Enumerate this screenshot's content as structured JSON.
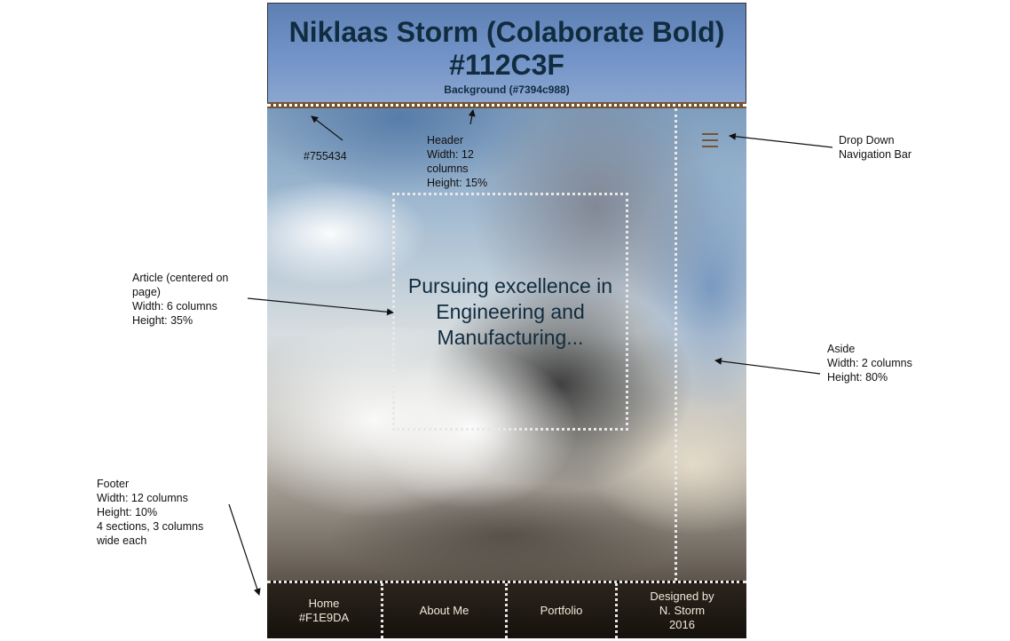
{
  "header": {
    "title_line1": "Niklaas Storm (Colaborate Bold)",
    "title_line2": "#112C3F",
    "subtitle": "Background (#7394c988)"
  },
  "article": {
    "text": "Pursuing excellence in Engineering and Manufacturing..."
  },
  "footer": {
    "sections": [
      {
        "line1": "Home",
        "line2": "#F1E9DA"
      },
      {
        "line1": "About Me"
      },
      {
        "line1": "Portfolio"
      },
      {
        "line1": "Designed by",
        "line2": "N. Storm",
        "line3": "2016"
      }
    ]
  },
  "annotations": {
    "band_color": "#755434",
    "header": "Header\nWidth: 12\ncolumns\nHeight: 15%",
    "dropdown": "Drop Down\nNavigation Bar",
    "article": "Article (centered on\npage)\nWidth: 6 columns\nHeight: 35%",
    "aside": "Aside\nWidth: 2 columns\nHeight: 80%",
    "footer": "Footer\nWidth: 12 columns\nHeight: 10%\n4 sections, 3 columns\nwide each"
  },
  "colors": {
    "title": "#112C3F",
    "header_bg": "#7394c9",
    "band": "#755434",
    "footer_text": "#F1E9DA"
  },
  "icons": {
    "menu": "hamburger-menu-icon"
  }
}
